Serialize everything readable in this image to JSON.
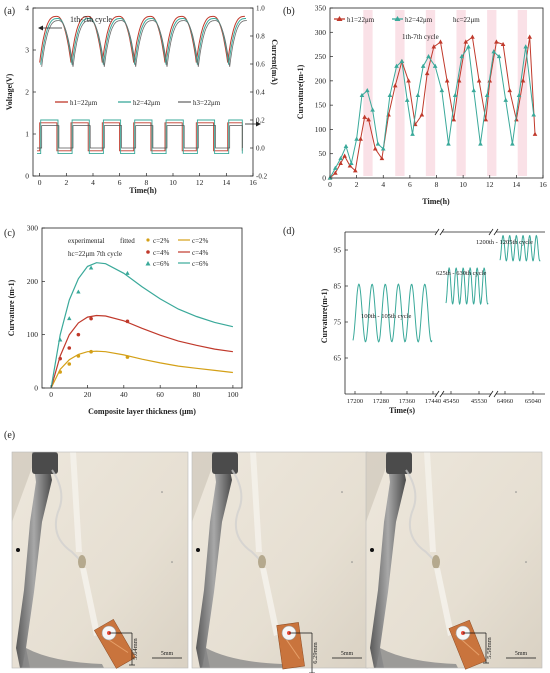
{
  "panels": {
    "a": "(a)",
    "b": "(b)",
    "c": "(c)",
    "d": "(d)",
    "e": "(e)"
  },
  "colors": {
    "red": "#c0392b",
    "teal": "#3aa99a",
    "mustard": "#d4a017",
    "pinkband": "#f6c9d4",
    "axis": "#222222"
  },
  "chart_data": [
    {
      "id": "a",
      "type": "line",
      "xlabel": "Time(h)",
      "ylabel": "Voltage(V)",
      "y2label": "Current(mA)",
      "xlim": [
        -0.5,
        16
      ],
      "ylim": [
        0,
        4
      ],
      "y2lim": [
        -0.2,
        1.0
      ],
      "xticks": [
        "0",
        "2",
        "4",
        "6",
        "8",
        "10",
        "12",
        "14",
        "16"
      ],
      "yticks": [
        "0",
        "1",
        "2",
        "3",
        "4"
      ],
      "y2ticks": [
        "-0.2",
        "0.0",
        "0.2",
        "0.4",
        "0.6",
        "0.8",
        "1.0"
      ],
      "annotation": "1th-7th cycle",
      "legend": [
        "h1=22μm",
        "h2=42μm",
        "h3=22μm"
      ],
      "cycle_starts": [
        0.0,
        2.35,
        4.7,
        7.05,
        9.4,
        11.75,
        14.1
      ],
      "cycle_period": 2.35,
      "voltage_peak": 3.8,
      "voltage_low": 2.7,
      "current_high": 0.18,
      "current_low": -0.02
    },
    {
      "id": "b",
      "type": "line",
      "xlabel": "Time(h)",
      "ylabel": "Curvature(m-1)",
      "xlim": [
        0,
        16
      ],
      "ylim": [
        0,
        350
      ],
      "xticks": [
        "0",
        "2",
        "4",
        "6",
        "8",
        "10",
        "12",
        "14",
        "16"
      ],
      "yticks": [
        "0",
        "50",
        "100",
        "150",
        "200",
        "250",
        "300",
        "350"
      ],
      "annotation": "1th-7th cycle",
      "legend": [
        "h1=22μm",
        "h2=42μm",
        "hc=22μm"
      ],
      "series": [
        {
          "name": "h1=22μm",
          "color": "#c0392b",
          "x": [
            0,
            0.4,
            0.8,
            1.1,
            1.5,
            1.9,
            2.3,
            2.6,
            2.9,
            3.4,
            3.9,
            4.4,
            4.9,
            5.4,
            5.9,
            6.4,
            6.9,
            7.3,
            7.8,
            8.3,
            8.8,
            9.3,
            9.7,
            10.2,
            10.7,
            11.2,
            11.7,
            12.0,
            12.5,
            13.0,
            13.5,
            14.0,
            14.5,
            15.0,
            15.4
          ],
          "y": [
            0,
            10,
            30,
            45,
            25,
            15,
            80,
            125,
            120,
            60,
            40,
            130,
            190,
            240,
            200,
            110,
            130,
            215,
            270,
            280,
            200,
            120,
            200,
            280,
            290,
            200,
            120,
            200,
            280,
            275,
            180,
            120,
            200,
            290,
            90
          ]
        },
        {
          "name": "h2=42μm",
          "color": "#3aa99a",
          "x": [
            0,
            0.4,
            0.8,
            1.2,
            1.6,
            2.0,
            2.4,
            2.8,
            3.2,
            3.6,
            4.0,
            4.5,
            5.0,
            5.4,
            5.8,
            6.2,
            6.6,
            7.0,
            7.4,
            7.9,
            8.4,
            8.9,
            9.4,
            9.9,
            10.4,
            10.8,
            11.3,
            11.8,
            12.3,
            12.7,
            13.2,
            13.7,
            14.2,
            14.7,
            15.3
          ],
          "y": [
            0,
            20,
            40,
            65,
            30,
            80,
            170,
            180,
            140,
            70,
            60,
            170,
            230,
            240,
            160,
            90,
            170,
            230,
            250,
            230,
            180,
            70,
            170,
            250,
            270,
            180,
            70,
            170,
            260,
            250,
            160,
            70,
            170,
            270,
            130
          ]
        }
      ]
    },
    {
      "id": "c",
      "type": "line",
      "xlabel": "Composite layer thickness (μm)",
      "ylabel": "Curvature (m-1)",
      "xlim": [
        -5,
        105
      ],
      "ylim": [
        0,
        300
      ],
      "xticks": [
        "0",
        "20",
        "40",
        "60",
        "80",
        "100"
      ],
      "yticks": [
        "0",
        "100",
        "200",
        "300"
      ],
      "legend_header": [
        "experimental",
        "fitted"
      ],
      "legend": [
        "c=2%",
        "c=4%",
        "c=6%"
      ],
      "annotation": "hc=22μm   7th cycle",
      "series": [
        {
          "name": "c=2%",
          "color": "#d4a017",
          "fit_x": [
            0,
            5,
            10,
            15,
            20,
            25,
            30,
            40,
            50,
            60,
            70,
            80,
            90,
            100
          ],
          "fit_y": [
            0,
            35,
            53,
            63,
            68,
            69,
            68,
            62,
            54,
            47,
            41,
            37,
            33,
            29
          ],
          "exp_x": [
            5,
            10,
            15,
            22,
            42
          ],
          "exp_y": [
            30,
            45,
            60,
            68,
            58
          ]
        },
        {
          "name": "c=4%",
          "color": "#c0392b",
          "fit_x": [
            0,
            5,
            10,
            15,
            20,
            25,
            30,
            40,
            50,
            60,
            70,
            80,
            90,
            100
          ],
          "fit_y": [
            0,
            60,
            100,
            122,
            133,
            136,
            135,
            126,
            112,
            99,
            88,
            80,
            73,
            68
          ],
          "exp_x": [
            5,
            10,
            15,
            22,
            42
          ],
          "exp_y": [
            55,
            75,
            100,
            130,
            125
          ]
        },
        {
          "name": "c=6%",
          "color": "#3aa99a",
          "fit_x": [
            0,
            5,
            10,
            15,
            20,
            25,
            30,
            40,
            50,
            60,
            70,
            80,
            90,
            100
          ],
          "fit_y": [
            0,
            100,
            165,
            205,
            228,
            235,
            233,
            215,
            190,
            167,
            148,
            134,
            123,
            115
          ],
          "exp_x": [
            5,
            10,
            15,
            22,
            42
          ],
          "exp_y": [
            90,
            130,
            180,
            225,
            215
          ]
        }
      ]
    },
    {
      "id": "d",
      "type": "line",
      "xlabel": "Time(s)",
      "ylabel": "Curvature(m-1)",
      "ylim": [
        55,
        100
      ],
      "yticks": [
        "65",
        "75",
        "85",
        "95"
      ],
      "xticks": [
        "17200",
        "17280",
        "17360",
        "17440",
        "45450",
        "45530",
        "64960",
        "65040"
      ],
      "annotations": [
        "100th - 105th cycle",
        "625th - 630th cycle",
        "1200th - 1205th cycle"
      ],
      "segments": [
        {
          "center": 77.5,
          "amp": 8,
          "cycles": 6
        },
        {
          "center": 85.0,
          "amp": 5,
          "cycles": 6
        },
        {
          "center": 95.5,
          "amp": 3.5,
          "cycles": 6
        }
      ]
    }
  ],
  "photos": [
    {
      "dim": "5.64mm",
      "scale": "5mm"
    },
    {
      "dim": "6.29mm",
      "scale": "5mm"
    },
    {
      "dim": "5.58mm",
      "scale": "5mm"
    }
  ]
}
